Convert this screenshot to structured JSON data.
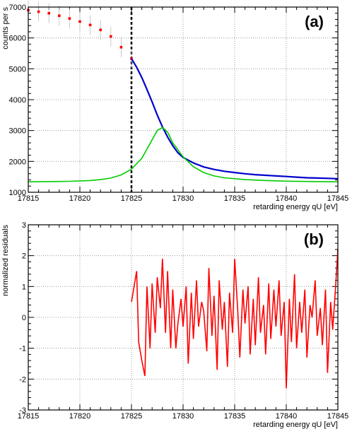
{
  "chart_data": [
    {
      "type": "scatter",
      "panel_label": "(a)",
      "xlabel": "retarding energy qU [eV]",
      "ylabel": "counts per s",
      "xlim": [
        17815,
        17845
      ],
      "ylim": [
        1000,
        7000
      ],
      "x_ticks": [
        "17815",
        "17820",
        "17825",
        "17830",
        "17835",
        "17840",
        "17845"
      ],
      "y_ticks": [
        "1000",
        "2000",
        "3000",
        "4000",
        "5000",
        "6000",
        "7000"
      ],
      "grid": true,
      "vertical_marker_x": 17825,
      "series": [
        {
          "color": "#ff0000",
          "points": [
            [
              17815,
              6900
            ],
            [
              17816,
              6850
            ],
            [
              17817,
              6800
            ],
            [
              17818,
              6720
            ],
            [
              17819,
              6630
            ],
            [
              17820,
              6530
            ],
            [
              17821,
              6420
            ],
            [
              17822,
              6260
            ],
            [
              17823,
              6050
            ],
            [
              17824,
              5700
            ],
            [
              17825,
              5330
            ]
          ]
        },
        {
          "color": "#0000cc",
          "points": [
            [
              17825,
              5330
            ],
            [
              17825.5,
              5050
            ],
            [
              17826,
              4720
            ],
            [
              17826.5,
              4330
            ],
            [
              17827,
              3930
            ],
            [
              17827.5,
              3500
            ],
            [
              17828,
              3120
            ],
            [
              17828.5,
              2790
            ],
            [
              17829,
              2510
            ],
            [
              17829.5,
              2280
            ],
            [
              17830,
              2130
            ],
            [
              17831,
              1950
            ],
            [
              17832,
              1820
            ],
            [
              17833,
              1740
            ],
            [
              17834,
              1680
            ],
            [
              17835,
              1640
            ],
            [
              17836,
              1600
            ],
            [
              17837,
              1570
            ],
            [
              17838,
              1550
            ],
            [
              17839,
              1530
            ],
            [
              17840,
              1510
            ],
            [
              17841,
              1490
            ],
            [
              17842,
              1470
            ],
            [
              17843,
              1460
            ],
            [
              17844,
              1450
            ],
            [
              17845,
              1440
            ]
          ]
        },
        {
          "color": "#00cc00",
          "points": [
            [
              17815,
              1340
            ],
            [
              17817,
              1345
            ],
            [
              17819,
              1355
            ],
            [
              17821,
              1380
            ],
            [
              17822,
              1410
            ],
            [
              17823,
              1460
            ],
            [
              17824,
              1560
            ],
            [
              17825,
              1750
            ],
            [
              17826,
              2100
            ],
            [
              17827,
              2700
            ],
            [
              17827.5,
              3000
            ],
            [
              17828,
              3100
            ],
            [
              17828.5,
              2950
            ],
            [
              17829,
              2600
            ],
            [
              17830,
              2150
            ],
            [
              17831,
              1830
            ],
            [
              17832,
              1640
            ],
            [
              17833,
              1530
            ],
            [
              17834,
              1470
            ],
            [
              17836,
              1410
            ],
            [
              17838,
              1380
            ],
            [
              17840,
              1360
            ],
            [
              17843,
              1345
            ],
            [
              17845,
              1340
            ]
          ]
        }
      ]
    },
    {
      "type": "line",
      "panel_label": "(b)",
      "xlabel": "retarding energy qU [eV]",
      "ylabel": "normalized residuals",
      "xlim": [
        17815,
        17845
      ],
      "ylim": [
        -3,
        3
      ],
      "x_ticks": [
        "17815",
        "17820",
        "17825",
        "17830",
        "17835",
        "17840",
        "17845"
      ],
      "y_ticks": [
        "-3",
        "-2",
        "-1",
        "0",
        "1",
        "2",
        "3"
      ],
      "grid": true,
      "series": [
        {
          "color": "#ff0000",
          "x": [
            17825,
            17825.5,
            17825.7,
            17826,
            17826.3,
            17826.5,
            17826.8,
            17827,
            17827.3,
            17827.5,
            17827.8,
            17828,
            17828.3,
            17828.5,
            17828.8,
            17829,
            17829.3,
            17829.5,
            17829.8,
            17830,
            17830.3,
            17830.5,
            17830.8,
            17831,
            17831.3,
            17831.5,
            17831.8,
            17832,
            17832.3,
            17832.5,
            17832.8,
            17833,
            17833.3,
            17833.5,
            17833.8,
            17834,
            17834.3,
            17834.5,
            17834.8,
            17835,
            17835.3,
            17835.5,
            17835.8,
            17836,
            17836.3,
            17836.5,
            17836.8,
            17837,
            17837.3,
            17837.5,
            17837.8,
            17838,
            17838.3,
            17838.5,
            17838.8,
            17839,
            17839.3,
            17839.5,
            17839.8,
            17840,
            17840.3,
            17840.5,
            17840.8,
            17841,
            17841.3,
            17841.5,
            17841.8,
            17842,
            17842.3,
            17842.5,
            17842.8,
            17843,
            17843.3,
            17843.5,
            17843.8,
            17844,
            17844.3,
            17844.5,
            17844.8,
            17845
          ],
          "values": [
            0.5,
            1.5,
            -0.8,
            -1.4,
            -1.9,
            1.0,
            -1.0,
            1.1,
            -0.5,
            1.3,
            0.3,
            1.9,
            -0.5,
            1.5,
            -1.0,
            0.9,
            -1.0,
            -0.2,
            0.6,
            -0.3,
            1.0,
            -1.5,
            0.8,
            -0.7,
            1.2,
            -0.3,
            0.5,
            0.2,
            -1.1,
            1.6,
            -0.6,
            0.7,
            -1.7,
            1.2,
            -0.4,
            0.5,
            -1.6,
            0.8,
            -0.5,
            1.9,
            0.2,
            -1.3,
            0.9,
            -0.2,
            1.0,
            -1.2,
            0.6,
            -0.9,
            1.3,
            -0.5,
            0.4,
            -1.2,
            1.1,
            -0.7,
            0.9,
            -0.3,
            1.2,
            -0.6,
            0.5,
            -2.3,
            0.6,
            -0.8,
            1.4,
            -1.0,
            0.5,
            -0.5,
            0.9,
            -1.3,
            0.4,
            0.0,
            1.2,
            -0.6,
            0.3,
            -0.9,
            0.9,
            -1.8,
            0.5,
            -0.4,
            1.1,
            2.2
          ]
        }
      ]
    }
  ]
}
